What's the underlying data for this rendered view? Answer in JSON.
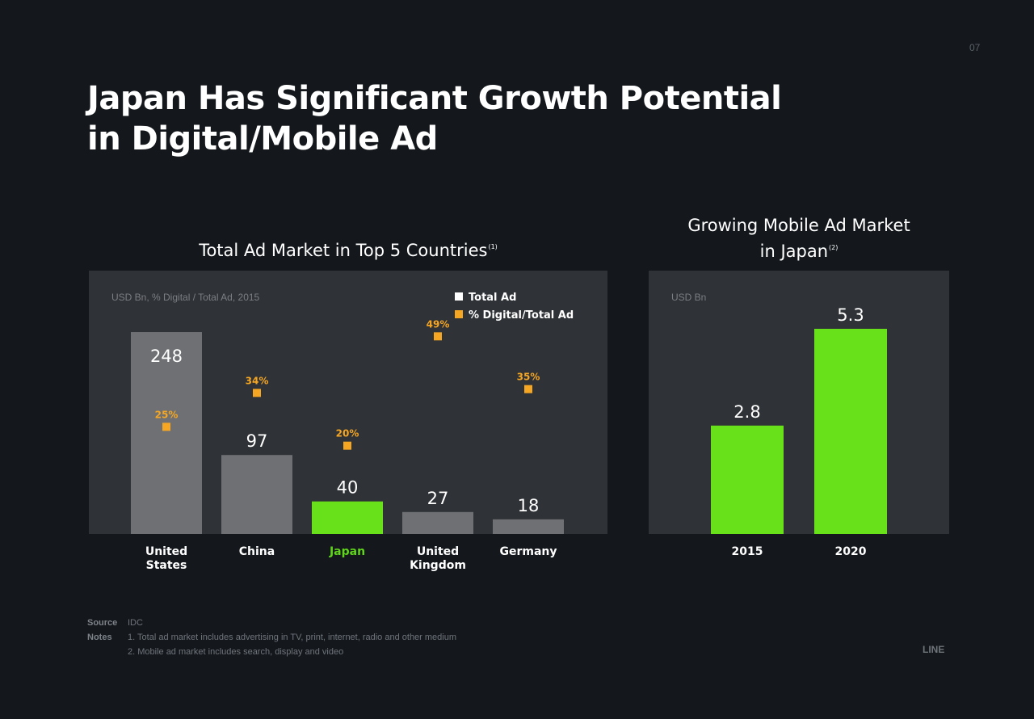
{
  "page_number": "07",
  "title_line1": "Japan Has Significant Growth Potential",
  "title_line2": "in Digital/Mobile Ad",
  "chart_data": [
    {
      "type": "bar",
      "title": "Total Ad Market in Top 5 Countries",
      "title_note": "(1)",
      "unit_label": "USD Bn, % Digital / Total Ad, 2015",
      "categories": [
        [
          "United",
          "States"
        ],
        [
          "China"
        ],
        [
          "Japan"
        ],
        [
          "United",
          "Kingdom"
        ],
        [
          "Germany"
        ]
      ],
      "series": [
        {
          "name": "Total Ad",
          "values": [
            248,
            97,
            40,
            27,
            18
          ],
          "labels": [
            "248",
            "97",
            "40",
            "27",
            "18"
          ]
        },
        {
          "name": "% Digital/Total Ad",
          "values": [
            25,
            34,
            20,
            49,
            35
          ],
          "labels": [
            "25%",
            "34%",
            "20%",
            "49%",
            "35%"
          ]
        }
      ],
      "highlight_category": "Japan",
      "ylim": [
        0,
        250
      ],
      "legend_position": "top-right",
      "grid": false
    },
    {
      "type": "bar",
      "title_line1": "Growing Mobile Ad Market",
      "title_line2": "in Japan",
      "title_note": "(2)",
      "unit_label": "USD Bn",
      "categories": [
        "2015",
        "2020"
      ],
      "values": [
        2.8,
        5.3
      ],
      "labels": [
        "2.8",
        "5.3"
      ],
      "ylim": [
        0,
        5.3
      ],
      "grid": false
    }
  ],
  "footer": {
    "source_label": "Source",
    "source_text": "IDC",
    "notes_label": "Notes",
    "notes": [
      "1. Total ad market includes advertising in TV, print, internet, radio and other medium",
      "2. Mobile ad market includes search, display and video"
    ]
  },
  "brand": "LINE",
  "colors": {
    "background": "#14181d",
    "panel": "#2f3236",
    "bar_gray": "#6e7073",
    "bar_green": "#69e11a",
    "marker_orange": "#f5a623",
    "highlight_text": "#5fd41a",
    "legend_white": "#ffffff"
  }
}
